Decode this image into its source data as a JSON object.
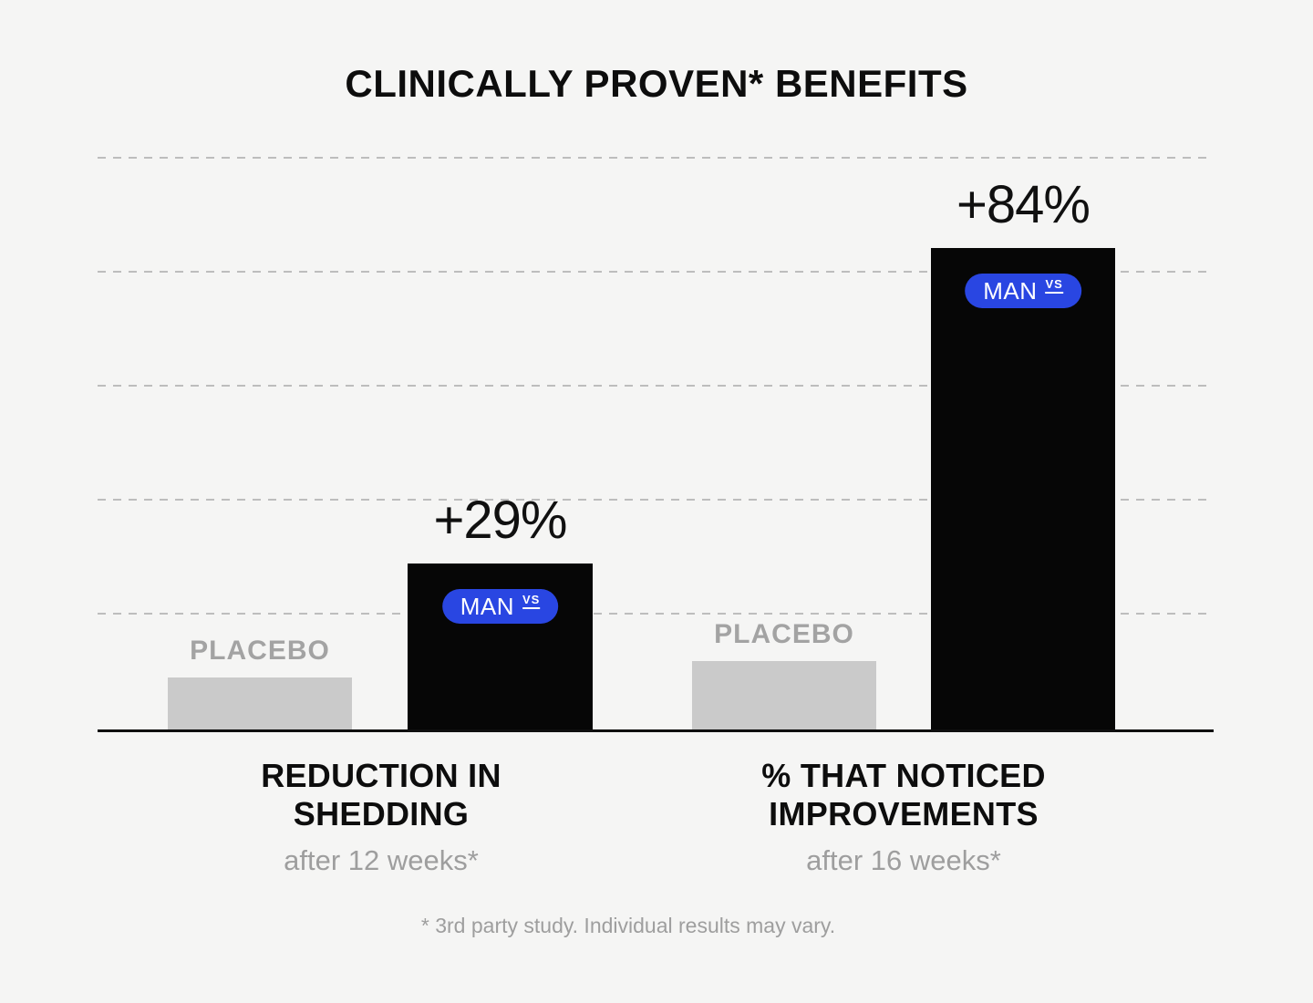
{
  "colors": {
    "background": "#f5f5f4",
    "bar_man": "#060606",
    "bar_placebo": "#cacaca",
    "badge_blue": "#2946e2",
    "badge_text": "#ffffff",
    "heading_text": "#0d0d0d",
    "muted_text": "#9e9e9e",
    "placebo_label_text": "#a3a3a3",
    "gridline": "#bdbdbd",
    "axis": "#0f0f0f"
  },
  "chart_data": {
    "type": "bar",
    "title": "CLINICALLY PROVEN* BENEFITS",
    "y_axis": {
      "min": 0,
      "max": 100,
      "gridline_step": 20,
      "gridline_style": "dashed",
      "tick_labels_visible": false
    },
    "legend": "none",
    "groups": [
      {
        "category": "REDUCTION IN\nSHEDDING",
        "subtitle": "after 12 weeks*",
        "series": [
          {
            "name": "PLACEBO",
            "value": 9,
            "label": "PLACEBO",
            "color": "#cacaca"
          },
          {
            "name": "MAN",
            "value": 29,
            "label": "+29%",
            "badge": "MAN",
            "badge_superscript": "VS",
            "color": "#060606"
          }
        ]
      },
      {
        "category": "% THAT NOTICED\nIMPROVEMENTS",
        "subtitle": "after 16 weeks*",
        "series": [
          {
            "name": "PLACEBO",
            "value": 12,
            "label": "PLACEBO",
            "color": "#cacaca"
          },
          {
            "name": "MAN",
            "value": 84,
            "label": "+84%",
            "badge": "MAN",
            "badge_superscript": "VS",
            "color": "#060606"
          }
        ]
      }
    ],
    "footnote": "* 3rd party study. Individual results may vary."
  }
}
